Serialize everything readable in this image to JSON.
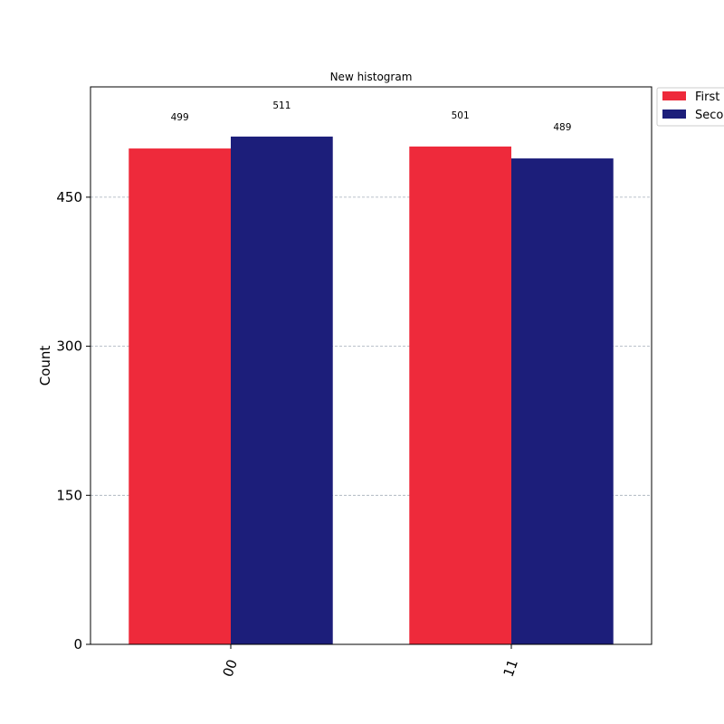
{
  "chart_data": {
    "type": "bar",
    "title": "New histogram",
    "xlabel": "",
    "ylabel": "Count",
    "categories": [
      "00",
      "11"
    ],
    "series": [
      {
        "name": "First",
        "color": "#ee2a3b",
        "values": [
          499,
          501
        ]
      },
      {
        "name": "Second",
        "color": "#1c1e7a",
        "values": [
          511,
          489
        ]
      }
    ],
    "yticks": [
      0,
      150,
      300,
      450
    ],
    "ylim": [
      0,
      561
    ],
    "grid": true,
    "legend": "outside-top-right",
    "colors": {
      "grid": "#a3aeb8",
      "axis": "#000000"
    }
  }
}
